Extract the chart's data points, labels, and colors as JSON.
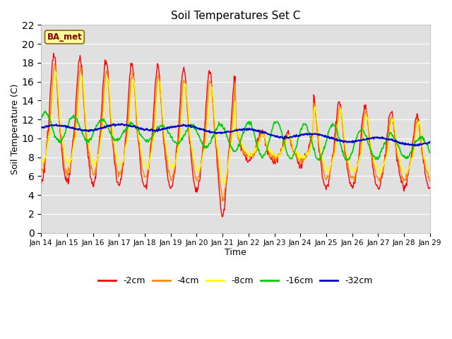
{
  "title": "Soil Temperatures Set C",
  "xlabel": "Time",
  "ylabel": "Soil Temperature (C)",
  "ylim": [
    0,
    22
  ],
  "yticks": [
    0,
    2,
    4,
    6,
    8,
    10,
    12,
    14,
    16,
    18,
    20,
    22
  ],
  "x_labels": [
    "Jan 14",
    "Jan 15",
    "Jan 16",
    "Jan 17",
    "Jan 18",
    "Jan 19",
    "Jan 20",
    "Jan 21",
    "Jan 22",
    "Jan 23",
    "Jan 24",
    "Jan 25",
    "Jan 26",
    "Jan 27",
    "Jan 28",
    "Jan 29"
  ],
  "annotation_text": "BA_met",
  "legend_labels": [
    "-2cm",
    "-4cm",
    "-8cm",
    "-16cm",
    "-32cm"
  ],
  "line_colors": [
    "#ff0000",
    "#ff8800",
    "#ffff00",
    "#00cc00",
    "#0000cc"
  ],
  "line_widths": [
    1.0,
    1.0,
    1.0,
    1.2,
    1.5
  ],
  "plot_bg_color": "#e0e0e0",
  "figsize": [
    6.4,
    4.8
  ],
  "dpi": 100,
  "n_days": 15,
  "pts_per_day": 48
}
